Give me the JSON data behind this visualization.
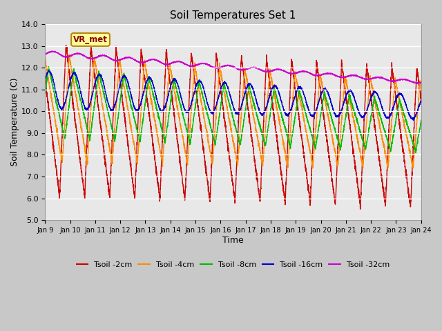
{
  "title": "Soil Temperatures Set 1",
  "xlabel": "Time",
  "ylabel": "Soil Temperature (C)",
  "ylim": [
    5.0,
    14.0
  ],
  "yticks": [
    5.0,
    6.0,
    7.0,
    8.0,
    9.0,
    10.0,
    11.0,
    12.0,
    13.0,
    14.0
  ],
  "xtick_labels": [
    "Jan 9",
    "Jan 10",
    "Jan 11",
    "Jan 12",
    "Jan 13",
    "Jan 14",
    "Jan 15",
    "Jan 16",
    "Jan 17",
    "Jan 18",
    "Jan 19",
    "Jan 20",
    "Jan 21",
    "Jan 22",
    "Jan 23",
    "Jan 24"
  ],
  "legend_labels": [
    "Tsoil -2cm",
    "Tsoil -4cm",
    "Tsoil -8cm",
    "Tsoil -16cm",
    "Tsoil -32cm"
  ],
  "line_colors": [
    "#cc0000",
    "#ff8c00",
    "#00bb00",
    "#0000cc",
    "#cc00cc"
  ],
  "annotation_text": "VR_met",
  "fig_bg": "#c8c8c8",
  "plot_bg": "#e8e8e8",
  "grid_color": "#ffffff",
  "n_points": 3600,
  "days": 15
}
